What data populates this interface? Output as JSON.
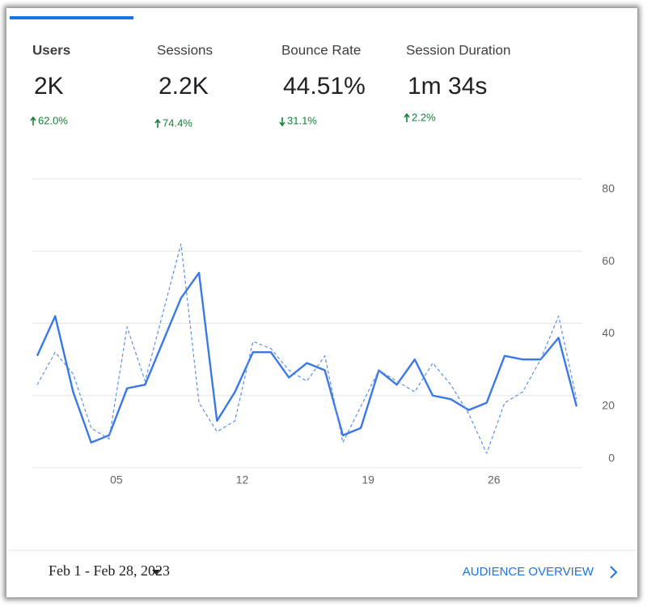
{
  "metrics": [
    {
      "label": "Users",
      "value": "2K",
      "change": "62.0%",
      "direction": "up"
    },
    {
      "label": "Sessions",
      "value": "2.2K",
      "change": "74.4%",
      "direction": "up"
    },
    {
      "label": "Bounce Rate",
      "value": "44.51%",
      "change": "31.1%",
      "direction": "down"
    },
    {
      "label": "Session Duration",
      "value": "1m 34s",
      "change": "2.2%",
      "direction": "up"
    }
  ],
  "chart_data": {
    "type": "line",
    "categories": [
      null,
      null,
      null,
      null,
      "05",
      null,
      null,
      null,
      null,
      null,
      null,
      "12",
      null,
      null,
      null,
      null,
      null,
      null,
      "19",
      null,
      null,
      null,
      null,
      null,
      null,
      "26",
      null,
      null,
      null,
      null,
      null
    ],
    "series": [
      {
        "color": "#3b78e7",
        "style": "solid",
        "values": [
          31,
          42,
          21,
          7,
          9,
          22,
          23,
          35,
          47,
          54,
          13,
          21,
          32,
          32,
          25,
          29,
          27,
          9,
          11,
          27,
          23,
          30,
          20,
          19,
          16,
          18,
          31,
          30,
          30,
          36,
          17
        ]
      },
      {
        "color": "#5b8fe8",
        "style": "dashed",
        "values": [
          23,
          32,
          26,
          11,
          8,
          39,
          24,
          43,
          62,
          18,
          10,
          13,
          35,
          33,
          27,
          24,
          31,
          7,
          17,
          27,
          24,
          21,
          29,
          23,
          15,
          4,
          18,
          21,
          30,
          42,
          19
        ]
      }
    ],
    "ylim": [
      0,
      80
    ],
    "yticks": [
      0,
      20,
      40,
      60,
      80
    ],
    "grid": true
  },
  "footer": {
    "date_range": "Feb 1 - Feb 28, 2023",
    "link": "AUDIENCE OVERVIEW"
  }
}
